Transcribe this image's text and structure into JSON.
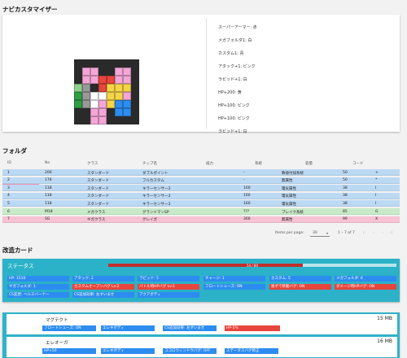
{
  "customizer": {
    "title": "ナビカスタマイザー",
    "programs": [
      "スーパーアーマー: 赤",
      "メガフォルダ1: 白",
      "カスタム1: 青",
      "アタック+1: ピンク",
      "ラピッド+1: 白",
      "HP+200: 黄",
      "HP+100: ピンク",
      "HP+100: ピンク",
      "ラピッド+1: 白"
    ]
  },
  "folder": {
    "title": "フォルダ",
    "headers": {
      "id": "ID",
      "no": "No",
      "klass": "クラス",
      "chip": "チップ名",
      "power": "威力",
      "element": "系統",
      "attribute": "容量",
      "code": "コード"
    },
    "rows": [
      {
        "id": "1",
        "no": "200",
        "klass": "スタンダード",
        "chip": "ダブルポイント",
        "power": "-",
        "element": "",
        "attribute": "数値付加系統",
        "cap": "50",
        "code": "+",
        "color": "blue"
      },
      {
        "id": "2",
        "no": "176",
        "klass": "スタンダード",
        "chip": "フルカスタム",
        "power": "-",
        "element": "",
        "attribute": "無属性",
        "cap": "50",
        "code": "*",
        "color": "blue"
      },
      {
        "id": "3",
        "no": "118",
        "klass": "スタンダード",
        "chip": "キラーセンサー3",
        "power": "160",
        "element": "",
        "attribute": "電気属性",
        "cap": "38",
        "code": "I",
        "color": "blue"
      },
      {
        "id": "4",
        "no": "118",
        "klass": "スタンダード",
        "chip": "キラーセンサー3",
        "power": "160",
        "element": "",
        "attribute": "電気属性",
        "cap": "38",
        "code": "I",
        "color": "blue"
      },
      {
        "id": "5",
        "no": "118",
        "klass": "スタンダード",
        "chip": "キラーセンサー3",
        "power": "160",
        "element": "",
        "attribute": "電気属性",
        "cap": "38",
        "code": "I",
        "color": "blue"
      },
      {
        "id": "6",
        "no": "M18",
        "klass": "メガクラス",
        "chip": "グランドマンSP",
        "power": "???",
        "element": "",
        "attribute": "ブレイク系統",
        "cap": "85",
        "code": "G",
        "color": "green"
      },
      {
        "id": "7",
        "no": "SG",
        "klass": "ギガクラス",
        "chip": "グレイガ",
        "power": "300",
        "element": "",
        "attribute": "無属性",
        "cap": "99",
        "code": "X",
        "color": "pink"
      }
    ],
    "items_per_page_label": "Items per page:",
    "items_per_page": "30",
    "range": "1 – 7 of 7"
  },
  "modcards": {
    "title": "改造カード",
    "status": {
      "title": "ステータス",
      "capacity_text": "54 / 80",
      "capacity_ratio": 0.675,
      "chips": [
        {
          "label": "HP: 1510",
          "color": "blue"
        },
        {
          "label": "アタック: 2",
          "color": "blue"
        },
        {
          "label": "ラピッド: 5",
          "color": "blue"
        },
        {
          "label": "チャージ: 1",
          "color": "blue"
        },
        {
          "label": "カスタム: 5",
          "color": "blue"
        },
        {
          "label": "メガフォルダ: 6",
          "color": "blue"
        },
        {
          "label": "ギガフォルダ: 1",
          "color": "blue"
        },
        {
          "label": "カスタムオープンバグ Lv:2",
          "color": "red"
        },
        {
          "label": "バトル時HPバグ Lv:1",
          "color": "red"
        },
        {
          "label": "フロートシューズ: ON",
          "color": "blue"
        },
        {
          "label": "後ずで移動バグ: ON",
          "color": "red"
        },
        {
          "label": "ダメージ時HPバグ: ON",
          "color": "red"
        },
        {
          "label": "CS変更: ヘルスバーナー",
          "color": "blue"
        },
        {
          "label": "CS追加効果: 左すいませ",
          "color": "blue"
        },
        {
          "label": "アクアボディ",
          "color": "blue"
        }
      ]
    },
    "programs": [
      {
        "name": "マグテクト",
        "size": "15 MB",
        "chips": [
          {
            "label": "フロートシューズ: ON",
            "color": "blue"
          },
          {
            "label": "エレキボディ",
            "color": "blue"
          },
          {
            "label": "CS追加効果: 左すいませ",
            "color": "blue"
          },
          {
            "label": "HP-5%",
            "color": "red"
          }
        ]
      },
      {
        "name": "エレオーガ",
        "size": "16 MB",
        "chips": [
          {
            "label": "HP+50",
            "color": "blue"
          },
          {
            "label": "エレキボディ",
            "color": "blue"
          },
          {
            "label": "ココロウィンドウバグ: OFF",
            "color": "blue"
          },
          {
            "label": "ステータスバグ修正",
            "color": "blue"
          }
        ]
      }
    ]
  },
  "colors": {
    "row_blue": "#bcd9f3",
    "row_green": "#c8eac8",
    "row_pink": "#f6c2d4",
    "accent_teal": "#2bb2c8",
    "chip_blue": "#2d8cf0",
    "chip_red": "#e8453c"
  }
}
